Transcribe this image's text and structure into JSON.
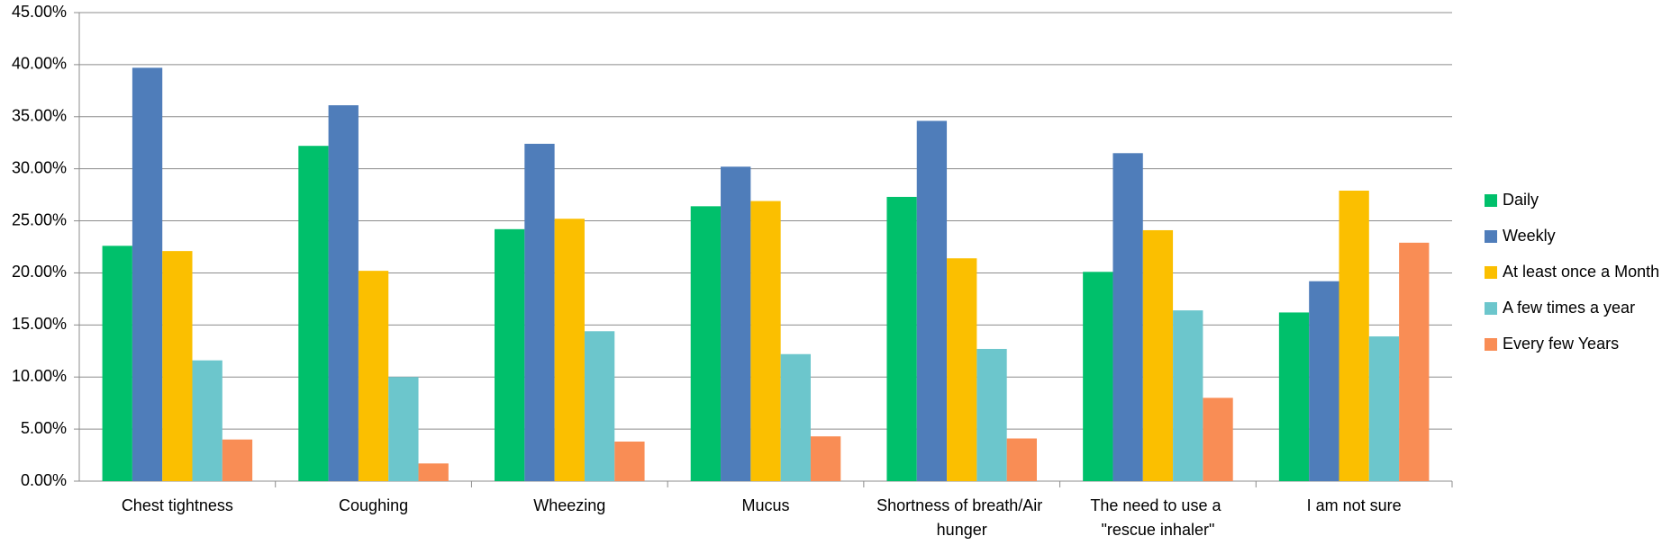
{
  "chart_data": {
    "type": "bar",
    "categories": [
      "Chest tightness",
      "Coughing",
      "Wheezing",
      "Mucus",
      "Shortness of breath/Air hunger",
      "The need to use a \"rescue inhaler\"",
      "I am not sure"
    ],
    "series": [
      {
        "name": "Daily",
        "color": "#00c06b",
        "values": [
          22.6,
          32.2,
          24.2,
          26.4,
          27.3,
          20.1,
          16.2
        ]
      },
      {
        "name": "Weekly",
        "color": "#4f7dba",
        "values": [
          39.7,
          36.1,
          32.4,
          30.2,
          34.6,
          31.5,
          19.2
        ]
      },
      {
        "name": "At least once a Month",
        "color": "#fbbf00",
        "values": [
          22.1,
          20.2,
          25.2,
          26.9,
          21.4,
          24.1,
          27.9
        ]
      },
      {
        "name": "A few times a year",
        "color": "#6cc6cc",
        "values": [
          11.6,
          10.0,
          14.4,
          12.2,
          12.7,
          16.4,
          13.9
        ]
      },
      {
        "name": "Every few Years",
        "color": "#f98d55",
        "values": [
          4.0,
          1.7,
          3.8,
          4.3,
          4.1,
          8.0,
          22.9
        ]
      }
    ],
    "ylim": [
      0,
      45
    ],
    "yticks": [
      {
        "value": 0,
        "label": "0.00%"
      },
      {
        "value": 5,
        "label": "5.00%"
      },
      {
        "value": 10,
        "label": "10.00%"
      },
      {
        "value": 15,
        "label": "15.00%"
      },
      {
        "value": 20,
        "label": "20.00%"
      },
      {
        "value": 25,
        "label": "25.00%"
      },
      {
        "value": 30,
        "label": "30.00%"
      },
      {
        "value": 35,
        "label": "35.00%"
      },
      {
        "value": 40,
        "label": "40.00%"
      },
      {
        "value": 45,
        "label": "45.00%"
      }
    ],
    "grid": true,
    "legend": "right"
  }
}
